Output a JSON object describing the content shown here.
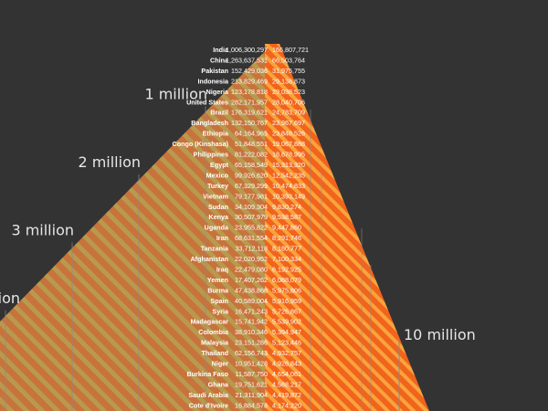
{
  "chart_data": {
    "type": "bar",
    "colors": {
      "background": "#333333",
      "left_fill": "#c8733c",
      "left_stripe": "#b89a4e",
      "right_fill": "#f2631e",
      "right_stripe": "#f7a53a",
      "text": "#ffffff",
      "scale_text": "#e6e6e6",
      "guide": "#8a8a8a"
    },
    "scale_labels": [
      {
        "label": "1 million",
        "value": 1000000,
        "side": "left"
      },
      {
        "label": "2 million",
        "value": 2000000,
        "side": "left"
      },
      {
        "label": "3 million",
        "value": 3000000,
        "side": "left"
      },
      {
        "label": "ion",
        "value": 4000000,
        "side": "left"
      },
      {
        "label": "10 million",
        "value": 10000000,
        "side": "right"
      }
    ],
    "rows": [
      {
        "country": "India",
        "left": "1,006,300,297",
        "right": "166,807,721"
      },
      {
        "country": "China",
        "left": "1,263,637,531",
        "right": "66,503,764"
      },
      {
        "country": "Pakistan",
        "left": "152,429,036",
        "right": "31,975,755"
      },
      {
        "country": "Indonesia",
        "left": "213,829,469",
        "right": "29,138,873"
      },
      {
        "country": "Nigeria",
        "left": "123,178,818",
        "right": "29,038,523"
      },
      {
        "country": "United States",
        "left": "282,171,957",
        "right": "28,040,706"
      },
      {
        "country": "Brazil",
        "left": "176,319,621",
        "right": "24,783,709"
      },
      {
        "country": "Bangladesh",
        "left": "132,150,767",
        "right": "23,967,697"
      },
      {
        "country": "Ethiopia",
        "left": "64,164,965",
        "right": "23,848,526"
      },
      {
        "country": "Congo (Kinshasa)",
        "left": "51,848,551",
        "right": "19,067,888"
      },
      {
        "country": "Philippines",
        "left": "81,222,082",
        "right": "18,678,995"
      },
      {
        "country": "Egypt",
        "left": "65,158,549",
        "right": "15,313,320"
      },
      {
        "country": "Mexico",
        "left": "99,926,620",
        "right": "12,542,235"
      },
      {
        "country": "Turkey",
        "left": "67,329,299",
        "right": "10,474,833"
      },
      {
        "country": "Vietnam",
        "left": "79,177,981",
        "right": "10,393,149"
      },
      {
        "country": "Sudan",
        "left": "34,109,304",
        "right": "9,830,274"
      },
      {
        "country": "Kenya",
        "left": "30,507,979",
        "right": "9,538,587"
      },
      {
        "country": "Uganda",
        "left": "23,955,822",
        "right": "9,447,860"
      },
      {
        "country": "Iran",
        "left": "68,631,554",
        "right": "8,291,746"
      },
      {
        "country": "Tanzania",
        "left": "33,712,118",
        "right": "8,180,777"
      },
      {
        "country": "Afghanistan",
        "left": "22,020,952",
        "right": "7,100,334"
      },
      {
        "country": "Iraq",
        "left": "22,479,080",
        "right": "6,192,925"
      },
      {
        "country": "Yemen",
        "left": "17,407,262",
        "right": "6,088,079"
      },
      {
        "country": "Burma",
        "left": "47,438,868",
        "right": "5,975,806"
      },
      {
        "country": "Spain",
        "left": "40,589,004",
        "right": "5,916,959"
      },
      {
        "country": "Syria",
        "left": "16,471,243",
        "right": "5,726,867"
      },
      {
        "country": "Madagascar",
        "left": "15,741,942",
        "right": "5,539,902"
      },
      {
        "country": "Colombia",
        "left": "38,910,346",
        "right": "5,394,947"
      },
      {
        "country": "Malaysia",
        "left": "23,151,286",
        "right": "5,123,446"
      },
      {
        "country": "Thailand",
        "left": "62,156,743",
        "right": "4,932,757"
      },
      {
        "country": "Niger",
        "left": "10,951,428",
        "right": "4,926,843"
      },
      {
        "country": "Burkina Faso",
        "left": "11,587,750",
        "right": "4,654,061"
      },
      {
        "country": "Ghana",
        "left": "19,751,621",
        "right": "4,588,217"
      },
      {
        "country": "Saudi Arabia",
        "left": "21,311,904",
        "right": "4,419,872"
      },
      {
        "country": "Cote d'Ivoire",
        "left": "16,884,578",
        "right": "4,174,220"
      }
    ]
  }
}
